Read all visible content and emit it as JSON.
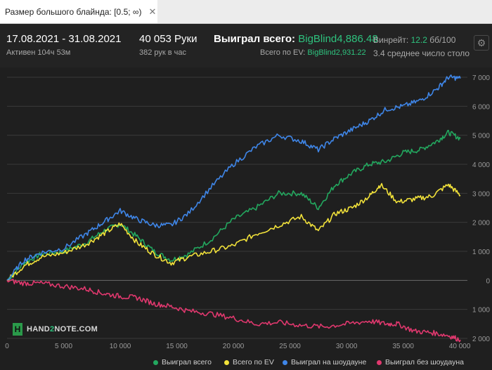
{
  "filter": {
    "label": "Размер большого блайнда: [0.5; ∞)",
    "close": "✕"
  },
  "stats": {
    "date_range": "17.08.2021 - 31.08.2021",
    "active": "Активен 104ч 53м",
    "hands": "40 053 Руки",
    "hands_per_hour": "382 рук в час",
    "won_total_label": "Выиграл всего:",
    "won_total_value": "BigBlind4,886.48",
    "ev_label": "Всего по EV:",
    "ev_value": "BigBlind2,931.22",
    "winrate_label": "Винрейт:",
    "winrate_value": "12.2",
    "winrate_unit": "бб/100",
    "avg_players": "3.4 среднее число столо"
  },
  "brand": {
    "mark": "H",
    "text_a": "HAND",
    "text_b": "2",
    "text_c": "NOTE.COM"
  },
  "chart_data": {
    "type": "line",
    "title": "",
    "xlabel": "",
    "ylabel": "",
    "xlim": [
      0,
      40053
    ],
    "ylim": [
      -2000,
      7000
    ],
    "x_ticks": [
      0,
      5000,
      10000,
      15000,
      20000,
      25000,
      30000,
      35000,
      40000
    ],
    "x_tick_labels": [
      "0",
      "5 000",
      "10 000",
      "15 000",
      "20 000",
      "25 000",
      "30 000",
      "35 000",
      "40 000"
    ],
    "y_ticks": [
      -2000,
      -1000,
      0,
      1000,
      2000,
      3000,
      4000,
      5000,
      6000,
      7000
    ],
    "y_tick_labels": [
      "2 000",
      "1 000",
      "0",
      "1 000",
      "2 000",
      "3 000",
      "4 000",
      "5 000",
      "6 000",
      "7 000"
    ],
    "grid": true,
    "legend_position": "bottom",
    "series": [
      {
        "name": "Выиграл всего",
        "color": "#23a85f",
        "x": [
          0,
          1500,
          3000,
          5000,
          7000,
          8500,
          10000,
          11500,
          13000,
          14500,
          16000,
          18000,
          20000,
          22000,
          24000,
          26000,
          27500,
          29000,
          30500,
          32000,
          33500,
          35000,
          36500,
          38000,
          39000,
          40053
        ],
        "y": [
          0,
          600,
          900,
          1000,
          1300,
          1700,
          1950,
          1500,
          1000,
          700,
          900,
          1400,
          2100,
          2500,
          3000,
          3000,
          2500,
          3300,
          3700,
          4000,
          4100,
          4400,
          4500,
          4800,
          5100,
          4886
        ]
      },
      {
        "name": "Всего по EV",
        "color": "#f2e23a",
        "x": [
          0,
          1500,
          3000,
          5000,
          7000,
          8500,
          10000,
          11500,
          13000,
          14500,
          16000,
          18000,
          20000,
          22000,
          24000,
          26000,
          27500,
          29000,
          30500,
          32000,
          33000,
          34500,
          36000,
          37500,
          39000,
          40053
        ],
        "y": [
          0,
          500,
          800,
          950,
          1250,
          1600,
          1950,
          1300,
          900,
          600,
          800,
          1000,
          1200,
          1600,
          1900,
          2200,
          1700,
          2300,
          2500,
          2900,
          3300,
          2700,
          2800,
          2900,
          3300,
          2931
        ]
      },
      {
        "name": "Выиграл на шоудауне",
        "color": "#3f86e8",
        "x": [
          0,
          1500,
          3000,
          5000,
          7000,
          8500,
          10000,
          11500,
          13000,
          14500,
          16000,
          18000,
          20000,
          22000,
          24000,
          26000,
          27500,
          29000,
          30500,
          32000,
          33500,
          35000,
          36500,
          38000,
          39000,
          40053
        ],
        "y": [
          0,
          700,
          950,
          1100,
          1600,
          2000,
          2400,
          2100,
          1900,
          1900,
          2300,
          3200,
          4000,
          4600,
          5000,
          4800,
          4500,
          4900,
          5200,
          5500,
          5900,
          6000,
          6200,
          6600,
          7000,
          6960
        ]
      },
      {
        "name": "Выиграл без шоудауна",
        "color": "#e0386e",
        "x": [
          0,
          1500,
          3000,
          5000,
          7000,
          8500,
          10000,
          11500,
          13000,
          14500,
          16000,
          18000,
          20000,
          22000,
          24000,
          26000,
          28000,
          30000,
          32000,
          33500,
          34500,
          36000,
          37500,
          39000,
          40053
        ],
        "y": [
          0,
          -100,
          -100,
          -200,
          -300,
          -450,
          -550,
          -600,
          -800,
          -900,
          -1050,
          -1150,
          -1300,
          -1500,
          -1450,
          -1550,
          -1600,
          -1500,
          -1400,
          -1500,
          -1500,
          -1750,
          -1800,
          -1900,
          -2050
        ]
      }
    ]
  }
}
